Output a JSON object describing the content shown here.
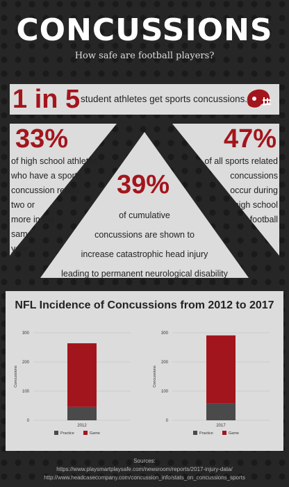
{
  "header": {
    "title": "CONCUSSIONS",
    "subtitle": "How safe are football players?"
  },
  "stat_band": {
    "big": "1 in 5",
    "text": "student athletes get sports concussions.",
    "icon": "football-helmet-icon"
  },
  "stats": {
    "left": {
      "big": "33%",
      "lines": [
        "of high school athletes",
        "who have a sports",
        "concussion report",
        "two or",
        "more in the",
        "same",
        "year"
      ]
    },
    "right": {
      "big": "47%",
      "lines": [
        "of all sports related",
        "concussions",
        "occur during",
        "high school",
        "football"
      ]
    },
    "center": {
      "big": "39%",
      "lines": [
        "of cumulative",
        "concussions are shown to",
        "increase catastrophic head injury",
        "leading to permanent neurological disability"
      ]
    }
  },
  "colors": {
    "accent": "#a3151c",
    "practice": "#4a4a4a",
    "game": "#a3151c",
    "panel": "#dcdcdc",
    "background": "#262626"
  },
  "chart_data": [
    {
      "type": "bar",
      "stacked": true,
      "title": "NFL Incidence of Concussions from 2012 to 2017",
      "categories": [
        "2012"
      ],
      "series": [
        {
          "name": "Practice",
          "values": [
            46
          ]
        },
        {
          "name": "Game",
          "values": [
            218
          ]
        }
      ],
      "ylabel": "Concussions",
      "ylim": [
        0,
        300
      ],
      "yticks": [
        0,
        100,
        200,
        300
      ],
      "legend": "bottom"
    },
    {
      "type": "bar",
      "stacked": true,
      "categories": [
        "2017"
      ],
      "series": [
        {
          "name": "Practice",
          "values": [
            58
          ]
        },
        {
          "name": "Game",
          "values": [
            233
          ]
        }
      ],
      "ylabel": "Concussions",
      "ylim": [
        0,
        300
      ],
      "yticks": [
        0,
        100,
        200,
        300
      ],
      "legend": "bottom"
    }
  ],
  "sources": {
    "label": "Sources:",
    "urls": [
      "https://www.playsmartplaysafe.com/newsroom/reports/2017-injury-data/",
      "http://www.headcasecompany.com/concussion_info/stats_on_concussions_sports"
    ]
  }
}
